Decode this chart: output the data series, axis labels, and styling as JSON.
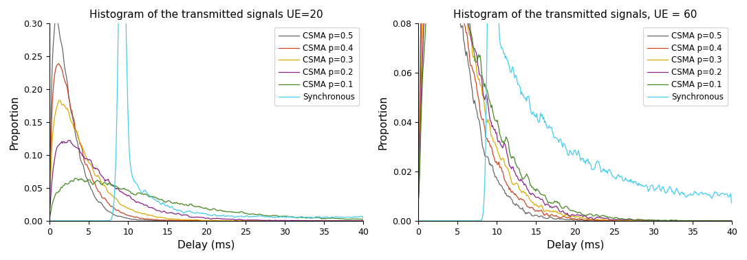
{
  "title1": "Histogram of the transmitted signals UE=20",
  "title2": "Histogram of the transmitted signals, UE = 60",
  "xlabel": "Delay (ms)",
  "ylabel": "Proportion",
  "xlim": [
    0,
    40
  ],
  "ylim1": [
    0,
    0.3
  ],
  "ylim2": [
    0,
    0.08
  ],
  "yticks1": [
    0,
    0.05,
    0.1,
    0.15,
    0.2,
    0.25,
    0.3
  ],
  "yticks2": [
    0,
    0.02,
    0.04,
    0.06,
    0.08
  ],
  "legend_labels": [
    "CSMA p=0.5",
    "CSMA p=0.4",
    "CSMA p=0.3",
    "CSMA p=0.2",
    "CSMA p=0.1",
    "Synchronous"
  ],
  "colors": {
    "p05": "#666666",
    "p04": "#CC4422",
    "p03": "#DDAA00",
    "p02": "#882288",
    "p01": "#448822",
    "sync": "#44CCEE"
  }
}
